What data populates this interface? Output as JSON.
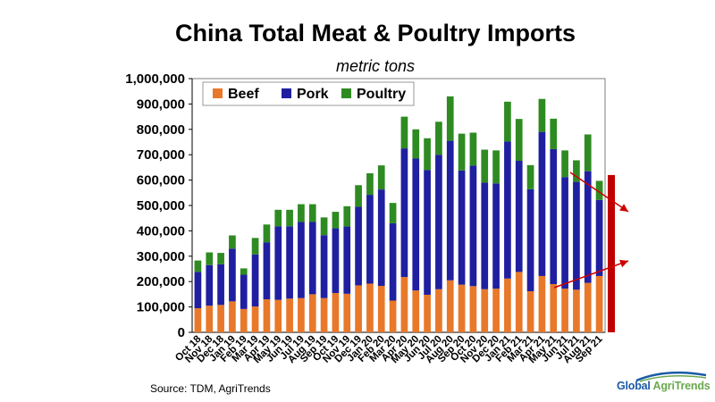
{
  "chart_data": {
    "type": "bar",
    "stacked": true,
    "title": "China Total Meat & Poultry Imports",
    "subtitle": "metric tons",
    "xlabel": "",
    "ylabel": "",
    "ylim": [
      0,
      1000000
    ],
    "yticks": [
      "0",
      "100,000",
      "200,000",
      "300,000",
      "400,000",
      "500,000",
      "600,000",
      "700,000",
      "800,000",
      "900,000",
      "1,000,000"
    ],
    "grid": false,
    "legend_position": "top-left",
    "categories": [
      "Oct 18",
      "Nov 18",
      "Dec 18",
      "Jan 19",
      "Feb 19",
      "Mar 19",
      "Apr 19",
      "May 19",
      "Jun 19",
      "Jul 19",
      "Aug 19",
      "Sep 19",
      "Oct 19",
      "Nov 19",
      "Dec 19",
      "Jan 20",
      "Feb 20",
      "Mar 20",
      "Apr 20",
      "May 20",
      "Jun 20",
      "Jul 20",
      "Aug 20",
      "Sep 20",
      "Oct 20",
      "Nov 20",
      "Dec 20",
      "Jan 21",
      "Feb 21",
      "Mar 21",
      "Apr 21",
      "May 21",
      "Jun 21",
      "Jul 21",
      "Aug 21",
      "Sep 21"
    ],
    "tick_labels": [
      "Oct 18",
      "Nov 18",
      "Dec 18",
      "Jan 19",
      "Feb 19",
      "Mar 19",
      "Apr 19",
      "May 19",
      "Jun 19",
      "Jul 19",
      "Aug 19",
      "Sep 19",
      "Oct 19",
      "Nov 19",
      "Dec 19",
      "Jan 20",
      "Feb 20",
      "Mar 20",
      "Apr 20",
      "May 20",
      "Jun 20",
      "Jul 20",
      "Aug 20",
      "Sep 20",
      "Oct 20",
      "Nov 20",
      "Dec 20",
      "Jan 21",
      "Feb 21",
      "Mar 21",
      "Apr 21",
      "May 21",
      "Jun 21",
      "Jul 21",
      "Aug 21",
      "Sep 21"
    ],
    "series": [
      {
        "name": "Beef",
        "color": "#e8782a",
        "values": [
          95000,
          105000,
          108000,
          122000,
          92000,
          102000,
          130000,
          128000,
          133000,
          135000,
          150000,
          135000,
          155000,
          152000,
          185000,
          192000,
          183000,
          125000,
          218000,
          165000,
          148000,
          170000,
          205000,
          188000,
          182000,
          170000,
          172000,
          212000,
          238000,
          162000,
          222000,
          190000,
          172000,
          168000,
          195000,
          222000
        ]
      },
      {
        "name": "Pork",
        "color": "#1f1fa0",
        "values": [
          143000,
          160000,
          160000,
          208000,
          135000,
          205000,
          225000,
          290000,
          285000,
          300000,
          285000,
          248000,
          255000,
          265000,
          310000,
          350000,
          380000,
          305000,
          507000,
          520000,
          492000,
          530000,
          550000,
          450000,
          475000,
          420000,
          415000,
          540000,
          438000,
          402000,
          568000,
          532000,
          440000,
          425000,
          440000,
          300000
        ]
      },
      {
        "name": "Poultry",
        "color": "#2e8b22",
        "values": [
          45000,
          50000,
          45000,
          52000,
          25000,
          65000,
          70000,
          65000,
          65000,
          70000,
          70000,
          70000,
          65000,
          80000,
          85000,
          85000,
          95000,
          80000,
          125000,
          115000,
          125000,
          130000,
          175000,
          145000,
          130000,
          130000,
          130000,
          157000,
          165000,
          95000,
          130000,
          120000,
          105000,
          85000,
          145000,
          75000
        ]
      }
    ],
    "annotations": [
      {
        "type": "bar",
        "color": "#c00000",
        "value": 620000
      }
    ]
  },
  "source": "Source:  TDM, AgriTrends",
  "logo": {
    "text_part1": "Global ",
    "text_part2": "AgriTrends",
    "color1": "#1a5aa6",
    "color2": "#6aa84f"
  }
}
